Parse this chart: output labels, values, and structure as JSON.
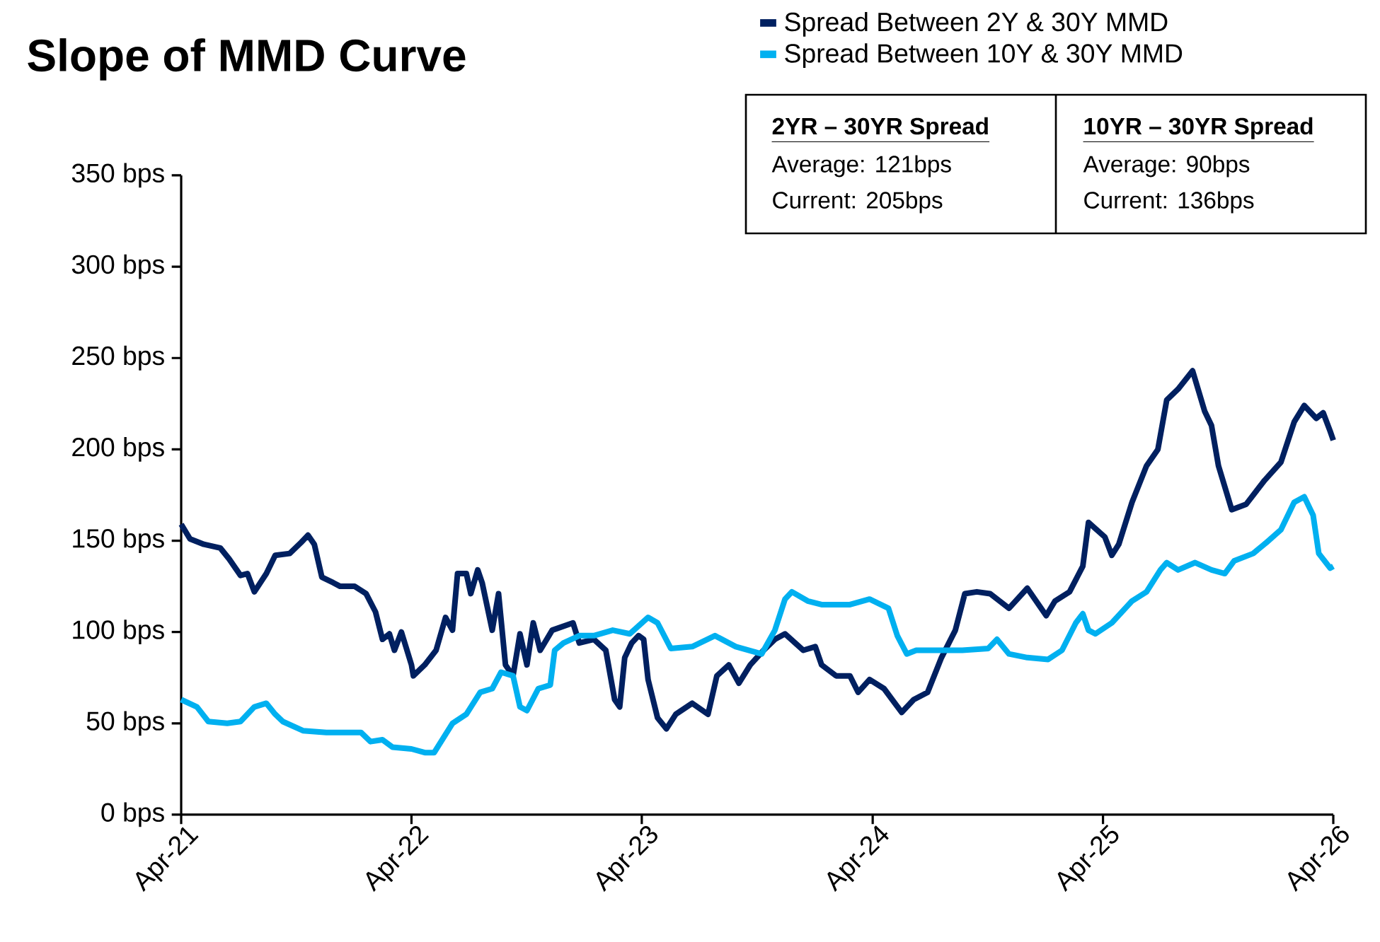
{
  "chart_data": {
    "type": "line",
    "title": "Slope of MMD Curve",
    "xlim": [
      "2021-04-01",
      "2026-04-01"
    ],
    "ylim": [
      0,
      350
    ],
    "xticks": [
      {
        "value": "2021-04-01",
        "label": "Apr-21"
      },
      {
        "value": "2022-04-01",
        "label": "Apr-22"
      },
      {
        "value": "2023-04-01",
        "label": "Apr-23"
      },
      {
        "value": "2024-04-01",
        "label": "Apr-24"
      },
      {
        "value": "2025-04-01",
        "label": "Apr-25"
      },
      {
        "value": "2026-04-01",
        "label": "Apr-26"
      }
    ],
    "yticks": [
      {
        "value": 0,
        "label": "0 bps"
      },
      {
        "value": 50,
        "label": "50 bps"
      },
      {
        "value": 100,
        "label": "100 bps"
      },
      {
        "value": 150,
        "label": "150 bps"
      },
      {
        "value": 200,
        "label": "200 bps"
      },
      {
        "value": 250,
        "label": "250 bps"
      },
      {
        "value": 300,
        "label": "300 bps"
      },
      {
        "value": 350,
        "label": "350 bps"
      }
    ],
    "legend": "top right",
    "annotations": [
      "2YR – 30YR Spread",
      "Average: 121bps",
      "Current: 205bps",
      "10YR – 30YR Spread",
      "Average: 90bps",
      "Current: 136bps"
    ],
    "series": [
      {
        "name": "Spread Between 2Y & 30Y MMD",
        "color": "#002060",
        "x": [
          "2021-04-01",
          "2021-04-15",
          "2021-05-07",
          "2021-06-02",
          "2021-06-16",
          "2021-07-04",
          "2021-07-15",
          "2021-07-26",
          "2021-08-14",
          "2021-08-28",
          "2021-09-20",
          "2021-10-08",
          "2021-10-19",
          "2021-10-29",
          "2021-11-10",
          "2021-11-28",
          "2021-12-09",
          "2022-01-01",
          "2022-01-19",
          "2022-02-03",
          "2022-02-14",
          "2022-02-25",
          "2022-03-05",
          "2022-03-16",
          "2022-04-01",
          "2022-04-04",
          "2022-04-22",
          "2022-05-10",
          "2022-05-25",
          "2022-06-05",
          "2022-06-13",
          "2022-06-27",
          "2022-07-04",
          "2022-07-15",
          "2022-07-22",
          "2022-08-07",
          "2022-08-17",
          "2022-08-28",
          "2022-09-09",
          "2022-09-20",
          "2022-10-01",
          "2022-10-11",
          "2022-10-22",
          "2022-11-10",
          "2022-12-13",
          "2022-12-23",
          "2023-01-15",
          "2023-02-03",
          "2023-02-17",
          "2023-02-25",
          "2023-03-05",
          "2023-03-16",
          "2023-03-27",
          "2023-04-04",
          "2023-04-11",
          "2023-04-26",
          "2023-05-10",
          "2023-05-25",
          "2023-06-20",
          "2023-07-15",
          "2023-07-29",
          "2023-08-17",
          "2023-09-02",
          "2023-09-20",
          "2023-10-11",
          "2023-10-29",
          "2023-11-14",
          "2023-12-13",
          "2024-01-01",
          "2024-01-11",
          "2024-02-03",
          "2024-02-25",
          "2024-03-09",
          "2024-03-27",
          "2024-04-19",
          "2024-05-17",
          "2024-06-05",
          "2024-06-27",
          "2024-07-19",
          "2024-08-10",
          "2024-08-25",
          "2024-09-13",
          "2024-10-04",
          "2024-11-03",
          "2024-12-02",
          "2025-01-01",
          "2025-01-15",
          "2025-02-07",
          "2025-02-28",
          "2025-03-09",
          "2025-04-04",
          "2025-04-15",
          "2025-04-26",
          "2025-05-17",
          "2025-06-09",
          "2025-06-27",
          "2025-07-11",
          "2025-07-29",
          "2025-08-21",
          "2025-09-09",
          "2025-09-20",
          "2025-10-01",
          "2025-10-22",
          "2025-11-14",
          "2025-12-13",
          "2026-01-08",
          "2026-01-29",
          "2026-02-14",
          "2026-03-05",
          "2026-03-16",
          "2026-03-27",
          "2026-04-01"
        ],
        "values": [
          159,
          151,
          148,
          146,
          140,
          131,
          132,
          122,
          132,
          142,
          143,
          149,
          153,
          148,
          130,
          127,
          125,
          125,
          121,
          111,
          96,
          99,
          90,
          100,
          82,
          76,
          82,
          90,
          108,
          101,
          132,
          132,
          121,
          134,
          127,
          101,
          121,
          82,
          76,
          99,
          82,
          105,
          90,
          101,
          105,
          94,
          96,
          90,
          63,
          59,
          86,
          94,
          98,
          96,
          74,
          53,
          47,
          55,
          61,
          55,
          76,
          82,
          72,
          82,
          90,
          96,
          99,
          90,
          92,
          82,
          76,
          76,
          67,
          74,
          69,
          56,
          63,
          67,
          86,
          101,
          121,
          122,
          121,
          113,
          124,
          109,
          117,
          122,
          136,
          160,
          152,
          142,
          148,
          171,
          191,
          200,
          227,
          233,
          243,
          221,
          213,
          191,
          167,
          170,
          183,
          193,
          215,
          224,
          217,
          220,
          210,
          205
        ]
      },
      {
        "name": "Spread Between 10Y & 30Y MMD",
        "color": "#00b0f0",
        "x": [
          "2021-04-01",
          "2021-04-26",
          "2021-05-14",
          "2021-06-13",
          "2021-07-04",
          "2021-07-26",
          "2021-08-14",
          "2021-08-28",
          "2021-09-09",
          "2021-10-11",
          "2021-11-17",
          "2021-12-20",
          "2022-01-11",
          "2022-01-26",
          "2022-02-14",
          "2022-03-02",
          "2022-04-01",
          "2022-04-22",
          "2022-05-07",
          "2022-06-05",
          "2022-06-27",
          "2022-07-19",
          "2022-08-07",
          "2022-08-21",
          "2022-09-09",
          "2022-09-20",
          "2022-10-01",
          "2022-10-19",
          "2022-11-07",
          "2022-11-14",
          "2022-11-28",
          "2022-12-23",
          "2023-01-15",
          "2023-02-14",
          "2023-03-13",
          "2023-04-11",
          "2023-04-26",
          "2023-05-17",
          "2023-06-20",
          "2023-07-26",
          "2023-08-28",
          "2023-10-08",
          "2023-10-29",
          "2023-11-14",
          "2023-11-25",
          "2023-12-20",
          "2024-01-11",
          "2024-02-25",
          "2024-03-27",
          "2024-04-26",
          "2024-05-10",
          "2024-05-25",
          "2024-06-09",
          "2024-07-08",
          "2024-08-21",
          "2024-10-01",
          "2024-10-15",
          "2024-11-03",
          "2024-12-02",
          "2025-01-04",
          "2025-01-26",
          "2025-02-17",
          "2025-02-28",
          "2025-03-09",
          "2025-03-20",
          "2025-04-15",
          "2025-05-17",
          "2025-06-09",
          "2025-07-01",
          "2025-07-11",
          "2025-07-29",
          "2025-08-25",
          "2025-09-20",
          "2025-10-11",
          "2025-10-26",
          "2025-11-25",
          "2025-12-16",
          "2026-01-08",
          "2026-01-29",
          "2026-02-14",
          "2026-02-28",
          "2026-03-09",
          "2026-03-27",
          "2026-04-01"
        ],
        "values": [
          63,
          59,
          51,
          50,
          51,
          59,
          61,
          55,
          51,
          46,
          45,
          45,
          45,
          40,
          41,
          37,
          36,
          34,
          34,
          50,
          55,
          67,
          69,
          78,
          76,
          59,
          57,
          69,
          71,
          90,
          94,
          98,
          98,
          101,
          99,
          108,
          105,
          91,
          92,
          98,
          92,
          88,
          101,
          118,
          122,
          117,
          115,
          115,
          118,
          113,
          98,
          88,
          90,
          90,
          90,
          91,
          96,
          88,
          86,
          85,
          90,
          105,
          110,
          101,
          99,
          105,
          117,
          122,
          134,
          138,
          134,
          138,
          134,
          132,
          139,
          143,
          149,
          156,
          171,
          174,
          164,
          143,
          135,
          136
        ]
      }
    ]
  }
}
